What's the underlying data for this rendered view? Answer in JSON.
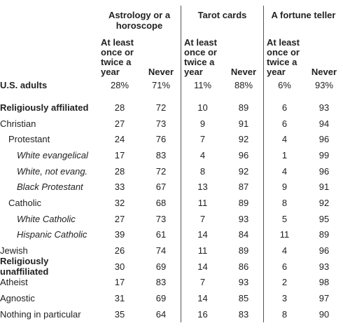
{
  "table": {
    "groups": [
      "Astrology or a horoscope",
      "Tarot cards",
      "A fortune teller"
    ],
    "subheaders": [
      "At least once or twice a year",
      "Never",
      "At least once or twice a year",
      "Never",
      "At least once or twice a year",
      "Never"
    ],
    "rows": [
      [
        "U.S. adults",
        "28%",
        "71%",
        "11%",
        "88%",
        "6%",
        "93%"
      ],
      [
        "Religiously affiliated",
        "28",
        "72",
        "10",
        "89",
        "6",
        "93"
      ],
      [
        "Christian",
        "27",
        "73",
        "9",
        "91",
        "6",
        "94"
      ],
      [
        "Protestant",
        "24",
        "76",
        "7",
        "92",
        "4",
        "96"
      ],
      [
        "White evangelical",
        "17",
        "83",
        "4",
        "96",
        "1",
        "99"
      ],
      [
        "White, not evang.",
        "28",
        "72",
        "8",
        "92",
        "4",
        "96"
      ],
      [
        "Black Protestant",
        "33",
        "67",
        "13",
        "87",
        "9",
        "91"
      ],
      [
        "Catholic",
        "32",
        "68",
        "11",
        "89",
        "8",
        "92"
      ],
      [
        "White Catholic",
        "27",
        "73",
        "7",
        "93",
        "5",
        "95"
      ],
      [
        "Hispanic Catholic",
        "39",
        "61",
        "14",
        "84",
        "11",
        "89"
      ],
      [
        "Jewish",
        "26",
        "74",
        "11",
        "89",
        "4",
        "96"
      ],
      [
        "Religiously unaffiliated",
        "30",
        "69",
        "14",
        "86",
        "6",
        "93"
      ],
      [
        "Atheist",
        "17",
        "83",
        "7",
        "93",
        "2",
        "98"
      ],
      [
        "Agnostic",
        "31",
        "69",
        "14",
        "85",
        "3",
        "97"
      ],
      [
        "Nothing in particular",
        "35",
        "64",
        "16",
        "83",
        "8",
        "90"
      ]
    ]
  }
}
